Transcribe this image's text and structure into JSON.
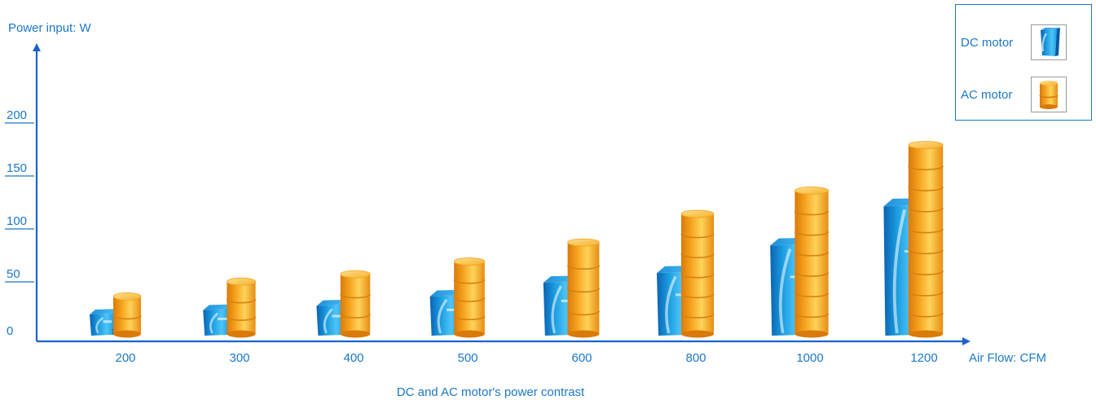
{
  "colors": {
    "axis": "#1b63c8",
    "text": "#1b78c8",
    "dc_light": "#4fc3f7",
    "dc_mid": "#1a9de0",
    "dc_dark": "#0b63b4",
    "ac_light": "#ffd35a",
    "ac_mid": "#f6a21e",
    "ac_dark": "#d97a0a"
  },
  "legend": {
    "dc_label": "DC motor",
    "ac_label": "AC motor",
    "dc_icon": "blue-prism-icon",
    "ac_icon": "orange-cylinder-icon"
  },
  "chart_data": {
    "type": "bar",
    "title": "DC and AC motor's power contrast",
    "xlabel": "Air Flow: CFM",
    "ylabel": "Power input: W",
    "categories": [
      "200",
      "300",
      "400",
      "500",
      "600",
      "800",
      "1000",
      "1200"
    ],
    "y_ticks": [
      "0",
      "50",
      "100",
      "150",
      "200"
    ],
    "ylim": [
      0,
      200
    ],
    "legend_position": "top-right",
    "series": [
      {
        "name": "DC motor",
        "values": [
          20,
          24,
          28,
          37,
          50,
          59,
          85,
          122
        ]
      },
      {
        "name": "AC motor",
        "values": [
          37,
          51,
          58,
          70,
          88,
          115,
          137,
          180
        ]
      }
    ]
  }
}
